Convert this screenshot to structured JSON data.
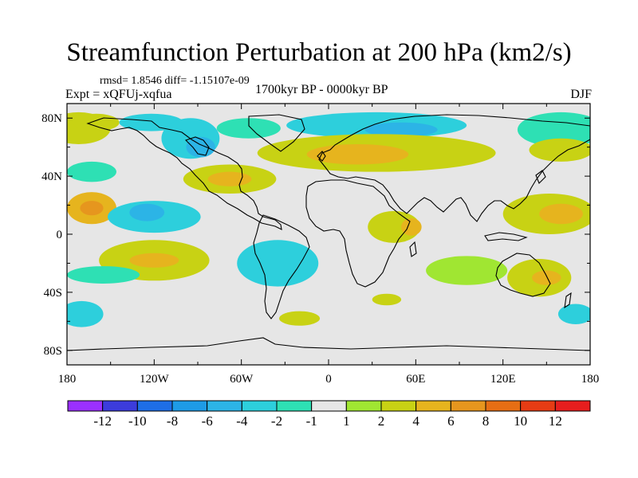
{
  "title": "Streamfunction Perturbation at 200 hPa (km2/s)",
  "stats": "rmsd= 1.8546 diff= -1.15107e-09",
  "experiment": "Expt = xQFUj-xqfua",
  "period": "1700kyr BP - 0000kyr BP",
  "season": "DJF",
  "axes": {
    "y_labels": [
      "80N",
      "40N",
      "0",
      "40S",
      "80S"
    ],
    "y_values": [
      80,
      40,
      0,
      -40,
      -80
    ],
    "x_labels": [
      "180",
      "120W",
      "60W",
      "0",
      "60E",
      "120E",
      "180"
    ],
    "x_values": [
      -180,
      -120,
      -60,
      0,
      60,
      120,
      180
    ]
  },
  "colorbar": {
    "labels": [
      "-12",
      "-10",
      "-8",
      "-6",
      "-4",
      "-2",
      "-1",
      "1",
      "2",
      "4",
      "6",
      "8",
      "10",
      "12"
    ],
    "colors": [
      "#9b30ff",
      "#3c3cdc",
      "#1e6ee6",
      "#1e9be6",
      "#2cb4e6",
      "#2dcfdc",
      "#2ee0b4",
      "#e6e6e6",
      "#a0e632",
      "#c8d214",
      "#e6b41e",
      "#e6961e",
      "#e66e14",
      "#e63c14",
      "#e61e1e"
    ]
  },
  "map_data": {
    "units": "km2/s",
    "colors": {
      "land_outline": "#000000",
      "background": "#e6e6e6"
    },
    "anomalies": [
      {
        "lon": -172,
        "lat": 73,
        "rx": 22,
        "ry": 11,
        "value": 3
      },
      {
        "lon": -160,
        "lat": 77,
        "rx": 16,
        "ry": 6,
        "value": 2
      },
      {
        "lon": -122,
        "lat": 77,
        "rx": 22,
        "ry": 6,
        "value": -3
      },
      {
        "lon": -95,
        "lat": 66,
        "rx": 20,
        "ry": 14,
        "value": -2.5
      },
      {
        "lon": -88,
        "lat": 60,
        "rx": 10,
        "ry": 7,
        "value": -6
      },
      {
        "lon": -55,
        "lat": 73,
        "rx": 22,
        "ry": 7,
        "value": -2
      },
      {
        "lon": 33,
        "lat": 75,
        "rx": 62,
        "ry": 9,
        "value": -3
      },
      {
        "lon": 50,
        "lat": 72,
        "rx": 25,
        "ry": 5,
        "value": -5
      },
      {
        "lon": 33,
        "lat": 56,
        "rx": 82,
        "ry": 13,
        "value": 3
      },
      {
        "lon": 20,
        "lat": 55,
        "rx": 35,
        "ry": 7,
        "value": 5
      },
      {
        "lon": 160,
        "lat": 72,
        "rx": 30,
        "ry": 12,
        "value": -2
      },
      {
        "lon": 160,
        "lat": 58,
        "rx": 22,
        "ry": 8,
        "value": 3
      },
      {
        "lon": -163,
        "lat": 43,
        "rx": 17,
        "ry": 7,
        "value": -2
      },
      {
        "lon": -68,
        "lat": 38,
        "rx": 32,
        "ry": 10,
        "value": 3
      },
      {
        "lon": -68,
        "lat": 38,
        "rx": 15,
        "ry": 5,
        "value": 5
      },
      {
        "lon": -163,
        "lat": 18,
        "rx": 17,
        "ry": 11,
        "value": 4
      },
      {
        "lon": -163,
        "lat": 18,
        "rx": 8,
        "ry": 5,
        "value": 6
      },
      {
        "lon": 152,
        "lat": 14,
        "rx": 32,
        "ry": 14,
        "value": 3
      },
      {
        "lon": 160,
        "lat": 14,
        "rx": 15,
        "ry": 7,
        "value": 5
      },
      {
        "lon": -120,
        "lat": 12,
        "rx": 32,
        "ry": 11,
        "value": -3
      },
      {
        "lon": -125,
        "lat": 15,
        "rx": 12,
        "ry": 6,
        "value": -5
      },
      {
        "lon": 45,
        "lat": 5,
        "rx": 18,
        "ry": 11,
        "value": 3
      },
      {
        "lon": 57,
        "lat": 5,
        "rx": 7,
        "ry": 6,
        "value": 5
      },
      {
        "lon": -120,
        "lat": -18,
        "rx": 38,
        "ry": 14,
        "value": 3
      },
      {
        "lon": -120,
        "lat": -18,
        "rx": 17,
        "ry": 5,
        "value": 5
      },
      {
        "lon": -35,
        "lat": -20,
        "rx": 28,
        "ry": 16,
        "value": -3
      },
      {
        "lon": 95,
        "lat": -25,
        "rx": 28,
        "ry": 10,
        "value": 1.5
      },
      {
        "lon": 145,
        "lat": -30,
        "rx": 22,
        "ry": 13,
        "value": 3
      },
      {
        "lon": 150,
        "lat": -30,
        "rx": 10,
        "ry": 5,
        "value": 5
      },
      {
        "lon": -155,
        "lat": -28,
        "rx": 25,
        "ry": 6,
        "value": -2
      },
      {
        "lon": -170,
        "lat": -55,
        "rx": 15,
        "ry": 9,
        "value": -3
      },
      {
        "lon": -20,
        "lat": -58,
        "rx": 14,
        "ry": 5,
        "value": 2
      },
      {
        "lon": 40,
        "lat": -45,
        "rx": 10,
        "ry": 4,
        "value": 2
      },
      {
        "lon": 170,
        "lat": -55,
        "rx": 12,
        "ry": 7,
        "value": -2.5
      }
    ]
  }
}
